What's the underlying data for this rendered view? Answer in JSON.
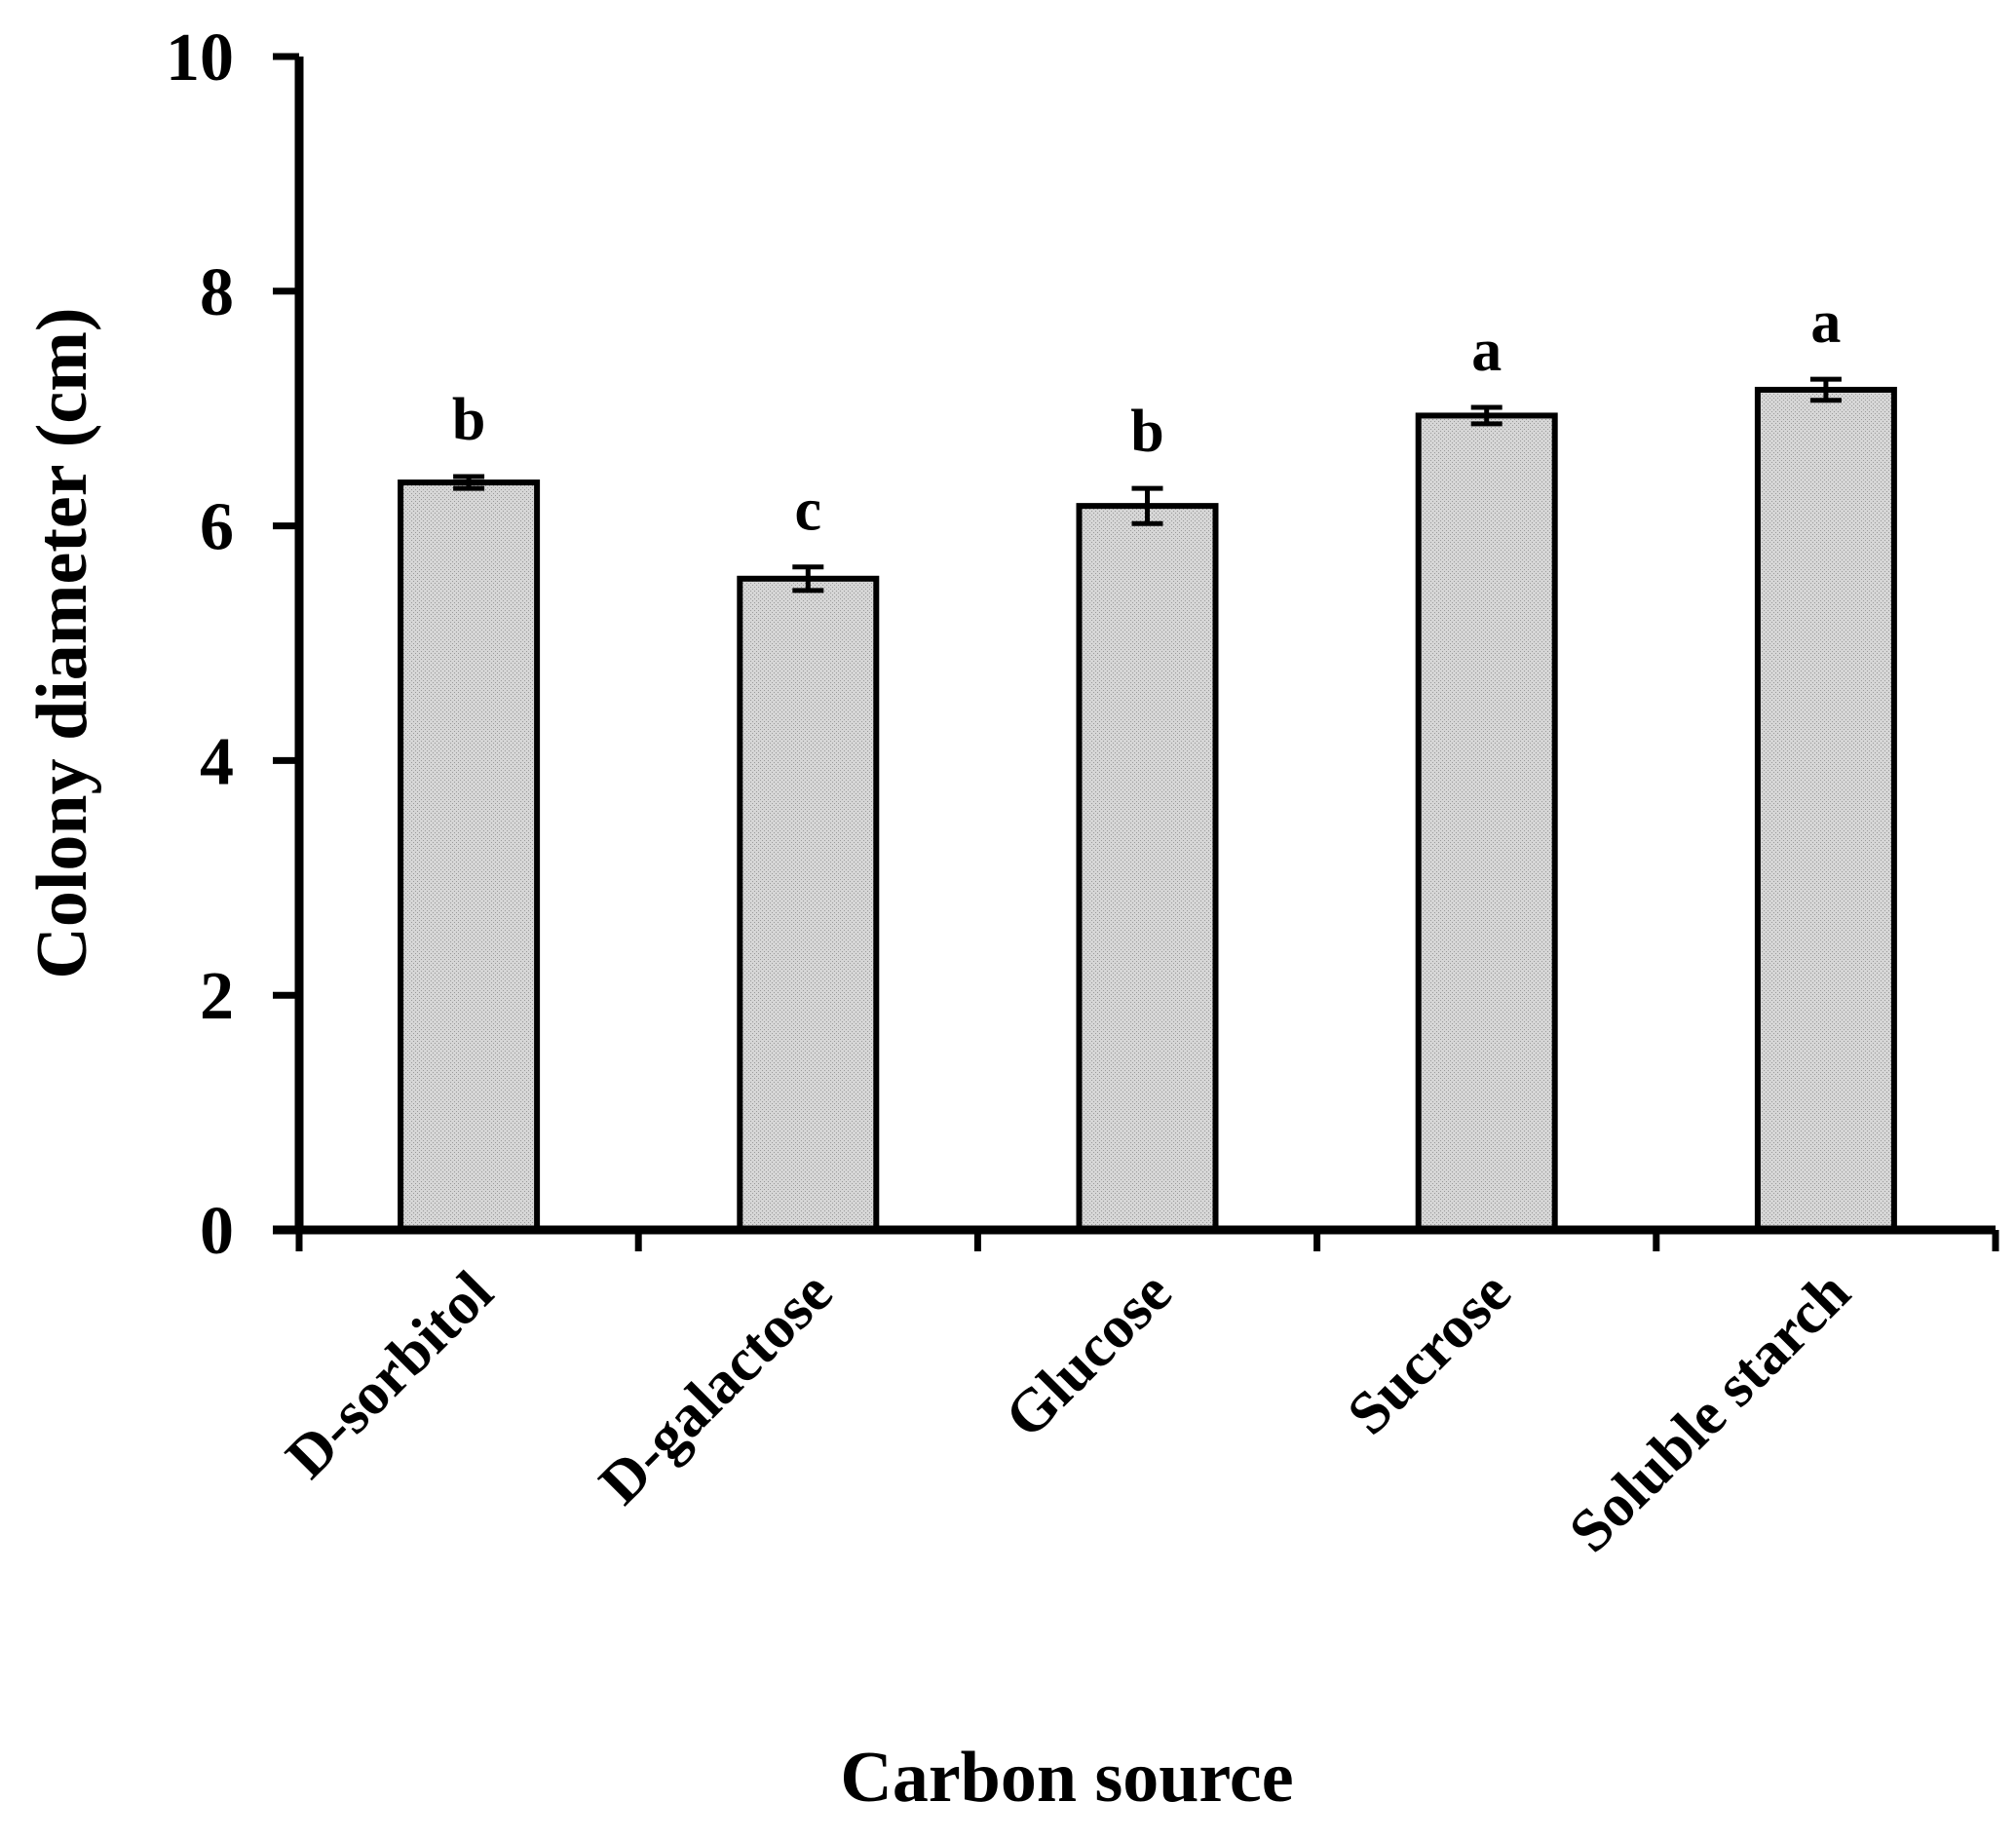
{
  "chart_data": {
    "type": "bar",
    "title": "",
    "xlabel": "Carbon source",
    "ylabel": "Colony diameter (cm)",
    "ylim": [
      0,
      10
    ],
    "yticks": [
      "0",
      "2",
      "4",
      "6",
      "8",
      "10"
    ],
    "categories": [
      "D-sorbitol",
      "D-galactose",
      "Glucose",
      "Sucrose",
      "Soluble starch"
    ],
    "values": [
      6.37,
      5.55,
      6.17,
      6.94,
      7.16
    ],
    "errors": [
      0.05,
      0.1,
      0.15,
      0.07,
      0.09
    ],
    "significance": [
      "b",
      "c",
      "b",
      "a",
      "a"
    ],
    "bar_color": "#cfcfcf",
    "grid": false,
    "legend": "none"
  }
}
